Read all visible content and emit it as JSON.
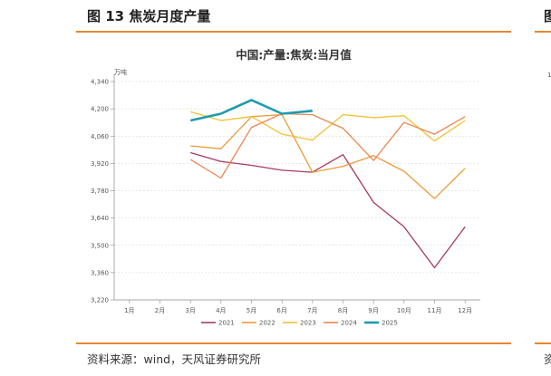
{
  "figure": {
    "title": "图 13 焦炭月度产量",
    "source": "资料来源：wind，天风证券研究所"
  },
  "right_partial": {
    "title_fragment": "图",
    "tick_fragment": "1",
    "source_fragment": "资"
  },
  "chart_data": {
    "type": "line",
    "title": "中国:产量:焦炭:当月值",
    "unit": "万吨",
    "xlabel": "",
    "ylabel": "",
    "categories": [
      "1月",
      "2月",
      "3月",
      "4月",
      "5月",
      "6月",
      "7月",
      "8月",
      "9月",
      "10月",
      "11月",
      "12月"
    ],
    "ylim": [
      3220,
      4340
    ],
    "yticks": [
      3220,
      3360,
      3500,
      3640,
      3780,
      3920,
      4060,
      4200,
      4340
    ],
    "ytick_labels": [
      "3,220",
      "3,360",
      "3,500",
      "3,640",
      "3,780",
      "3,920",
      "4,060",
      "4,200",
      "4,340"
    ],
    "grid": "horizontal-dashed",
    "legend_position": "bottom",
    "series": [
      {
        "name": "2021",
        "color": "#A93A5C",
        "values": [
          null,
          null,
          3975,
          3930,
          3910,
          3885,
          3875,
          3965,
          3720,
          3595,
          3385,
          3595
        ]
      },
      {
        "name": "2022",
        "color": "#EE9A3A",
        "values": [
          null,
          null,
          4010,
          3995,
          4160,
          4170,
          3875,
          3905,
          3960,
          3880,
          3740,
          3895
        ]
      },
      {
        "name": "2023",
        "color": "#F2C233",
        "values": [
          null,
          null,
          4185,
          4140,
          4160,
          4070,
          4040,
          4170,
          4155,
          4165,
          4035,
          4140
        ]
      },
      {
        "name": "2024",
        "color": "#EB8552",
        "values": [
          null,
          null,
          3940,
          3845,
          4105,
          4175,
          4170,
          4100,
          3935,
          4130,
          4070,
          4160
        ]
      },
      {
        "name": "2025",
        "color": "#1F9AB0",
        "values": [
          null,
          null,
          4140,
          4175,
          4245,
          4175,
          4190,
          null,
          null,
          null,
          null,
          null
        ]
      }
    ]
  }
}
